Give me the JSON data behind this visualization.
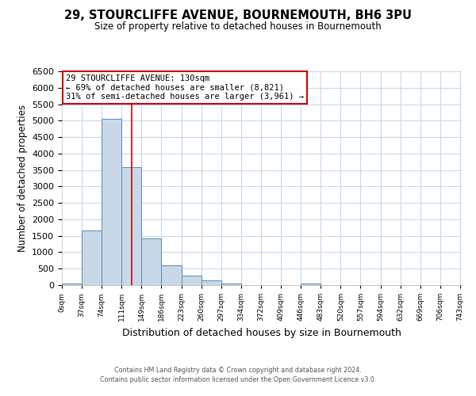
{
  "title": "29, STOURCLIFFE AVENUE, BOURNEMOUTH, BH6 3PU",
  "subtitle": "Size of property relative to detached houses in Bournemouth",
  "xlabel": "Distribution of detached houses by size in Bournemouth",
  "ylabel": "Number of detached properties",
  "bar_edges": [
    0,
    37,
    74,
    111,
    148,
    185,
    222,
    259,
    296,
    333,
    370,
    407,
    444,
    481,
    518,
    555,
    592,
    629,
    666,
    703,
    740
  ],
  "bar_heights": [
    50,
    1650,
    5050,
    3580,
    1420,
    610,
    300,
    140,
    60,
    0,
    0,
    0,
    50,
    0,
    0,
    0,
    0,
    0,
    0,
    0
  ],
  "bar_color": "#c8d8e8",
  "bar_edge_color": "#5a8ab0",
  "property_line_x": 130,
  "property_line_color": "#cc0000",
  "ylim": [
    0,
    6500
  ],
  "yticks": [
    0,
    500,
    1000,
    1500,
    2000,
    2500,
    3000,
    3500,
    4000,
    4500,
    5000,
    5500,
    6000,
    6500
  ],
  "xtick_labels": [
    "0sqm",
    "37sqm",
    "74sqm",
    "111sqm",
    "149sqm",
    "186sqm",
    "223sqm",
    "260sqm",
    "297sqm",
    "334sqm",
    "372sqm",
    "409sqm",
    "446sqm",
    "483sqm",
    "520sqm",
    "557sqm",
    "594sqm",
    "632sqm",
    "669sqm",
    "706sqm",
    "743sqm"
  ],
  "annotation_title": "29 STOURCLIFFE AVENUE: 130sqm",
  "annotation_line1": "← 69% of detached houses are smaller (8,821)",
  "annotation_line2": "31% of semi-detached houses are larger (3,961) →",
  "annotation_box_color": "#ffffff",
  "annotation_box_edge": "#cc0000",
  "footer1": "Contains HM Land Registry data © Crown copyright and database right 2024.",
  "footer2": "Contains public sector information licensed under the Open Government Licence v3.0.",
  "bg_color": "#ffffff",
  "grid_color": "#c8d8e8"
}
